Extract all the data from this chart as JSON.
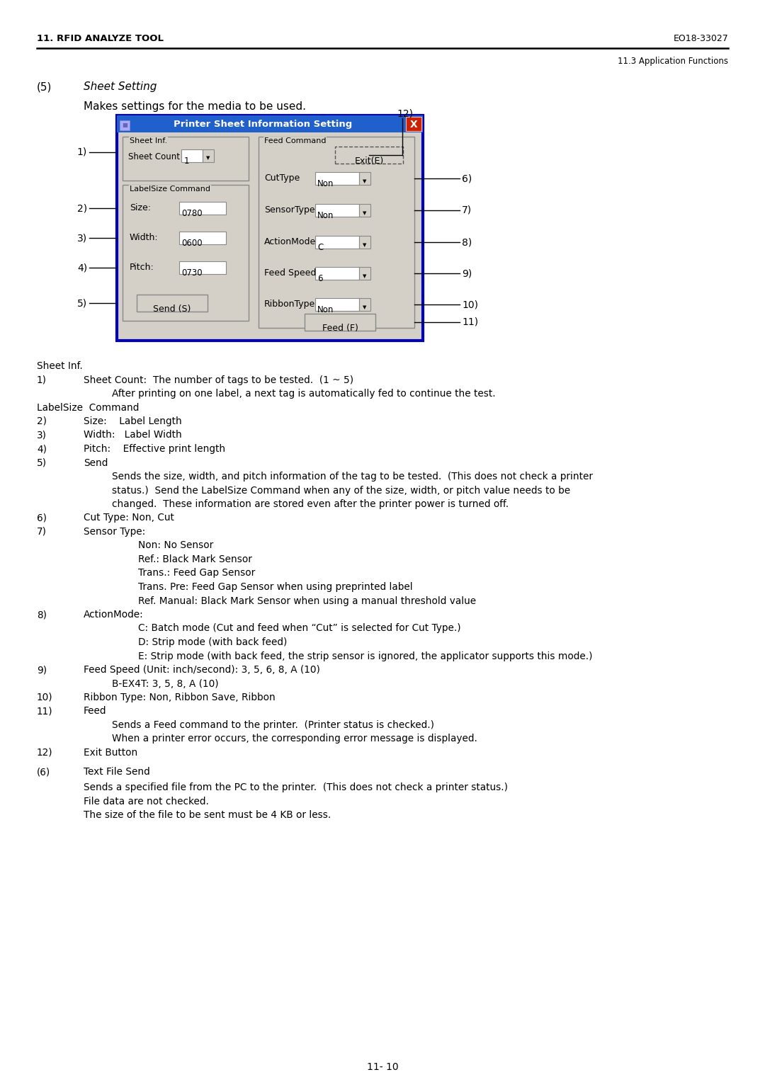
{
  "header_left": "11. RFID ANALYZE TOOL",
  "header_right": "EO18-33027",
  "subheader_right": "11.3 Application Functions",
  "page_number": "11- 10",
  "section_number": "(5)",
  "section_title": "Sheet Setting",
  "section_subtitle": "Makes settings for the media to be used.",
  "callout_12": "12)",
  "dialog_title": "Printer Sheet Information Setting",
  "dialog_bg": "#d4d0c8",
  "dialog_border": "#0000bb",
  "dialog_title_bg": "#2060cc",
  "dialog_title_fg": "#ffffff",
  "dialog_close_bg": "#cc2200",
  "section6_number": "(6)",
  "section6_title": "Text File Send",
  "section6_text": [
    "Sends a specified file from the PC to the printer.  (This does not check a printer status.)",
    "File data are not checked.",
    "The size of the file to be sent must be 4 KB or less."
  ]
}
